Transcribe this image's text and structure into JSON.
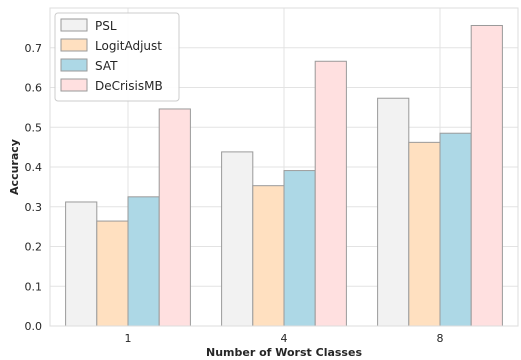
{
  "chart_data": {
    "type": "bar",
    "title": "",
    "xlabel": "Number of Worst Classes",
    "ylabel": "Accuracy",
    "categories": [
      "1",
      "4",
      "8"
    ],
    "ylim": [
      0,
      0.8
    ],
    "yticks": [
      "0.0",
      "0.1",
      "0.2",
      "0.3",
      "0.4",
      "0.5",
      "0.6",
      "0.7"
    ],
    "grid": true,
    "legend_position": "top-left",
    "series": [
      {
        "name": "PSL",
        "color": "#f2f2f2",
        "values": [
          0.312,
          0.438,
          0.573
        ]
      },
      {
        "name": "LogitAdjust",
        "color": "#ffe0c0",
        "values": [
          0.264,
          0.353,
          0.462
        ]
      },
      {
        "name": "SAT",
        "color": "#add8e6",
        "values": [
          0.325,
          0.391,
          0.485
        ]
      },
      {
        "name": "DeCrisisMB",
        "color": "#ffe0e0",
        "values": [
          0.546,
          0.666,
          0.756
        ]
      }
    ]
  }
}
